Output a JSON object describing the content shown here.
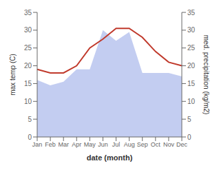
{
  "chart_data": {
    "type": "line",
    "categories": [
      "Jan",
      "Feb",
      "Mar",
      "Apr",
      "May",
      "Jun",
      "Jul",
      "Aug",
      "Sep",
      "Oct",
      "Nov",
      "Dec"
    ],
    "series": [
      {
        "type": "area",
        "color": "#b8c4ee",
        "values": [
          16,
          14.5,
          15.5,
          19,
          19,
          30,
          27,
          29.5,
          18,
          18,
          18,
          17
        ]
      },
      {
        "type": "line",
        "color": "#c0392b",
        "values": [
          19.0,
          18.0,
          18.0,
          20.0,
          25.0,
          27.5,
          30.5,
          30.5,
          28.0,
          24.0,
          21.0,
          20.0
        ]
      }
    ],
    "xlabel": "date (month)",
    "ylabel": "max temp (C)",
    "y2label": "med. precipitation (kg/m2)",
    "ylim": [
      0,
      35
    ],
    "yticks": [
      0,
      5,
      10,
      15,
      20,
      25,
      30,
      35
    ],
    "y2lim": [
      0,
      35
    ],
    "y2ticks": [
      0,
      5,
      10,
      15,
      20,
      25,
      30,
      35
    ],
    "grid": false
  }
}
